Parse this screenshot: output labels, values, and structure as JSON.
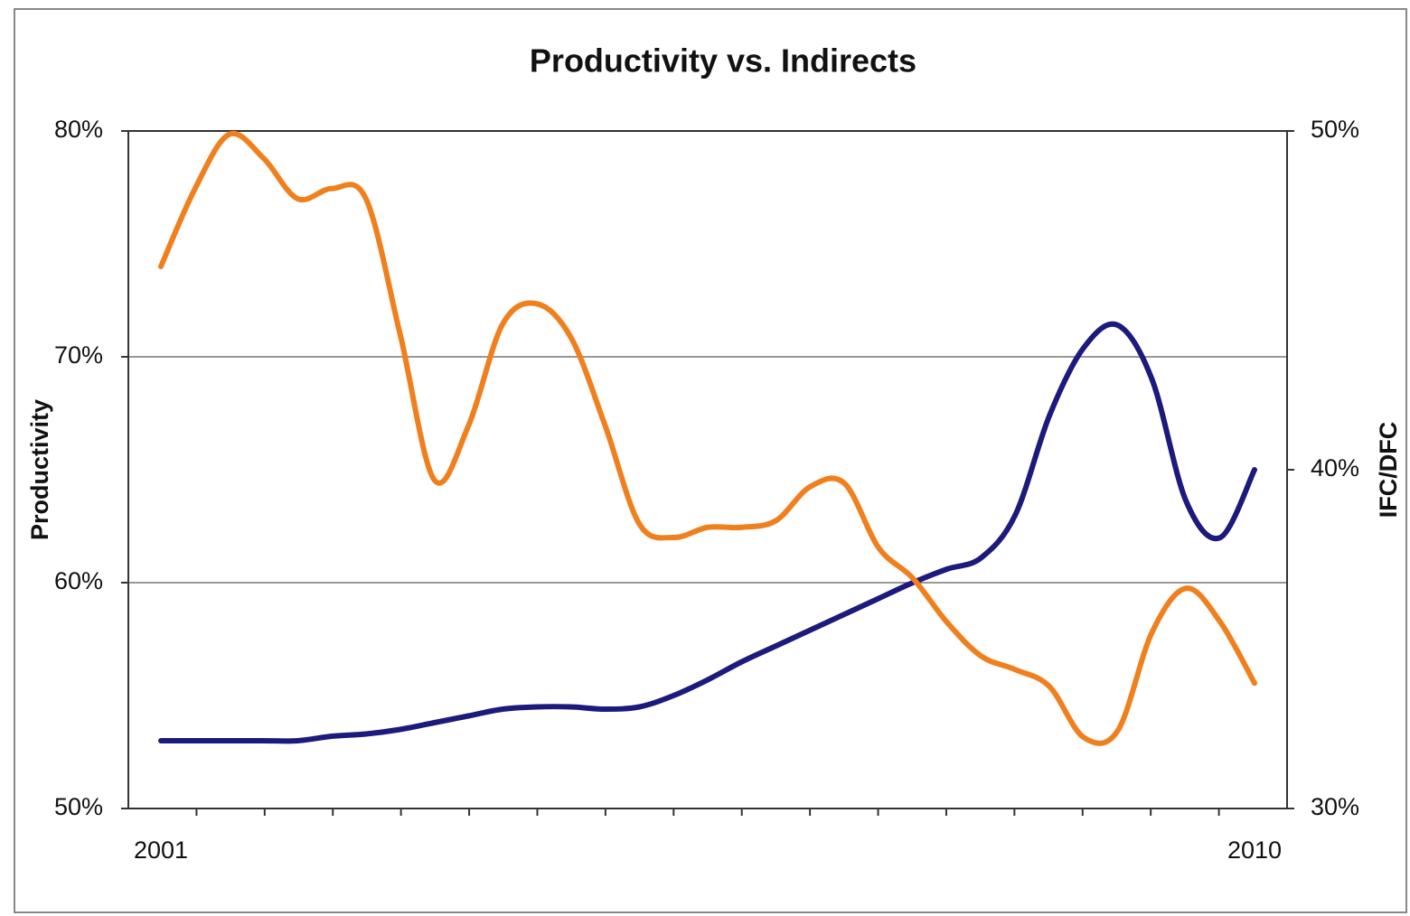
{
  "chart_data": {
    "type": "line",
    "title": "Productivity vs. Indirects",
    "ylabel": "Productivity",
    "y2label": "IFC/DFC",
    "categories": [
      "2001",
      null,
      null,
      null,
      null,
      null,
      null,
      null,
      null,
      null,
      null,
      null,
      null,
      null,
      null,
      null,
      null,
      null,
      null,
      null,
      null,
      null,
      null,
      null,
      null,
      null,
      null,
      null,
      null,
      null,
      null,
      null,
      "2010"
    ],
    "series": [
      {
        "color": "#1c1a7c",
        "values": [
          53.0,
          53.0,
          53.0,
          53.0,
          53.0,
          53.2,
          53.3,
          53.5,
          53.8,
          54.1,
          54.4,
          54.5,
          54.5,
          54.4,
          54.5,
          55.0,
          55.7,
          56.5,
          57.2,
          57.9,
          58.6,
          59.3,
          60.0,
          60.6,
          61.1,
          63.0,
          67.4,
          70.4,
          71.4,
          69.0,
          63.6,
          62.0,
          65.0
        ]
      },
      {
        "color": "#f07f1e",
        "axis": "y2",
        "values": [
          46.0,
          48.3,
          49.9,
          49.2,
          48.0,
          48.3,
          48.0,
          44.0,
          39.7,
          41.3,
          44.3,
          44.9,
          43.9,
          41.3,
          38.4,
          38.0,
          38.3,
          38.3,
          38.5,
          39.5,
          39.6,
          37.7,
          36.8,
          35.5,
          34.5,
          34.1,
          33.6,
          32.1,
          32.3,
          35.2,
          36.5,
          35.5,
          33.7
        ]
      }
    ],
    "ylim": [
      50,
      80
    ],
    "yticks": [
      {
        "value": 50,
        "label": "50%"
      },
      {
        "value": 60,
        "label": "60%"
      },
      {
        "value": 70,
        "label": "70%"
      },
      {
        "value": 80,
        "label": "80%"
      }
    ],
    "y2lim": [
      30,
      50
    ],
    "y2ticks": [
      {
        "value": 30,
        "label": "30%"
      },
      {
        "value": 40,
        "label": "40%"
      },
      {
        "value": 50,
        "label": "50%"
      }
    ],
    "grid": true
  }
}
